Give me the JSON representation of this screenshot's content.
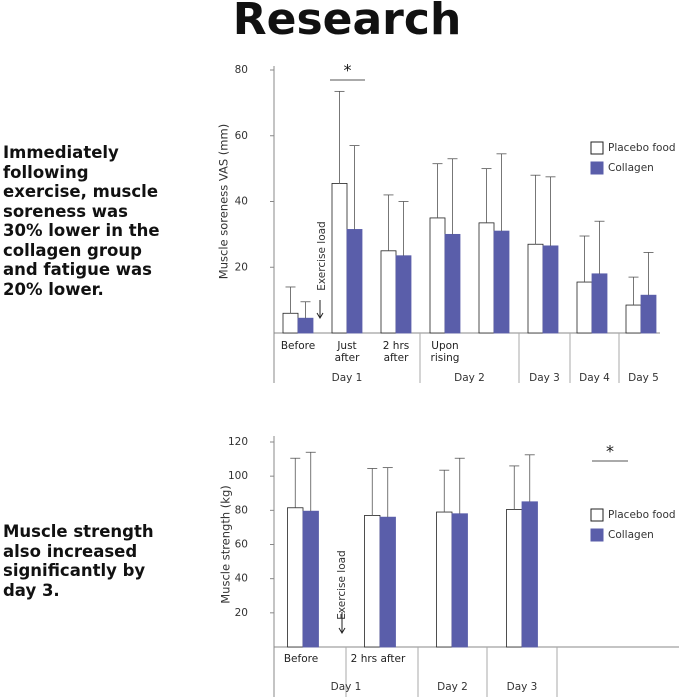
{
  "title": "Research",
  "captions": [
    "Immediately following exercise, muscle soreness was 30% lower in the collagen group and fatigue was 20% lower.",
    "Muscle strength also increased significantly by day 3."
  ],
  "chart_data": [
    {
      "type": "bar",
      "ylabel": "Muscle soreness VAS (mm)",
      "categories": [
        "Before",
        "Just after",
        "2 hrs after",
        "Upon rising",
        null,
        null,
        null,
        null
      ],
      "groups": [
        {
          "name": "Day 1",
          "count": 3
        },
        {
          "name": "Day 2",
          "count": 2
        },
        {
          "name": "Day 3",
          "count": 1
        },
        {
          "name": "Day 4",
          "count": 1
        },
        {
          "name": "Day 5",
          "count": 1
        }
      ],
      "series": [
        {
          "name": "Placebo food",
          "color": "#ffffff",
          "values": [
            6,
            45.5,
            25,
            35,
            33.5,
            27,
            15.5,
            8.5
          ],
          "errors": [
            8,
            28,
            17,
            16.5,
            16.5,
            21,
            14,
            8.5
          ]
        },
        {
          "name": "Collagen",
          "color": "#5a5eaa",
          "values": [
            4.5,
            31.5,
            23.5,
            30,
            31,
            26.5,
            18,
            11.5
          ],
          "errors": [
            5,
            25.5,
            16.5,
            23,
            23.5,
            21,
            16,
            13
          ]
        }
      ],
      "ylim": [
        0,
        80
      ],
      "yticks": [
        20,
        40,
        60,
        80
      ],
      "significance": "*",
      "annotation": "Exercise load",
      "legend": "right"
    },
    {
      "type": "bar",
      "ylabel": "Muscle strength (kg)",
      "categories": [
        "Before",
        "2 hrs after",
        null,
        null,
        null
      ],
      "groups": [
        {
          "name": "Day 1",
          "count": 2
        },
        {
          "name": "Day 2",
          "count": 1
        },
        {
          "name": "Day 3",
          "count": 1
        }
      ],
      "series": [
        {
          "name": "Placebo food",
          "color": "#ffffff",
          "values": [
            81.5,
            77,
            79,
            80.5,
            null
          ],
          "errors": [
            29,
            27.5,
            24.5,
            25.5,
            null
          ]
        },
        {
          "name": "Collagen",
          "color": "#5a5eaa",
          "values": [
            79.5,
            76,
            78,
            85,
            null
          ],
          "errors": [
            34.5,
            29,
            32.5,
            27.5,
            null
          ]
        }
      ],
      "ylim": [
        0,
        120
      ],
      "yticks": [
        20,
        40,
        60,
        80,
        100,
        120
      ],
      "significance": "*",
      "annotation": "Exercise load",
      "legend": "right"
    }
  ]
}
